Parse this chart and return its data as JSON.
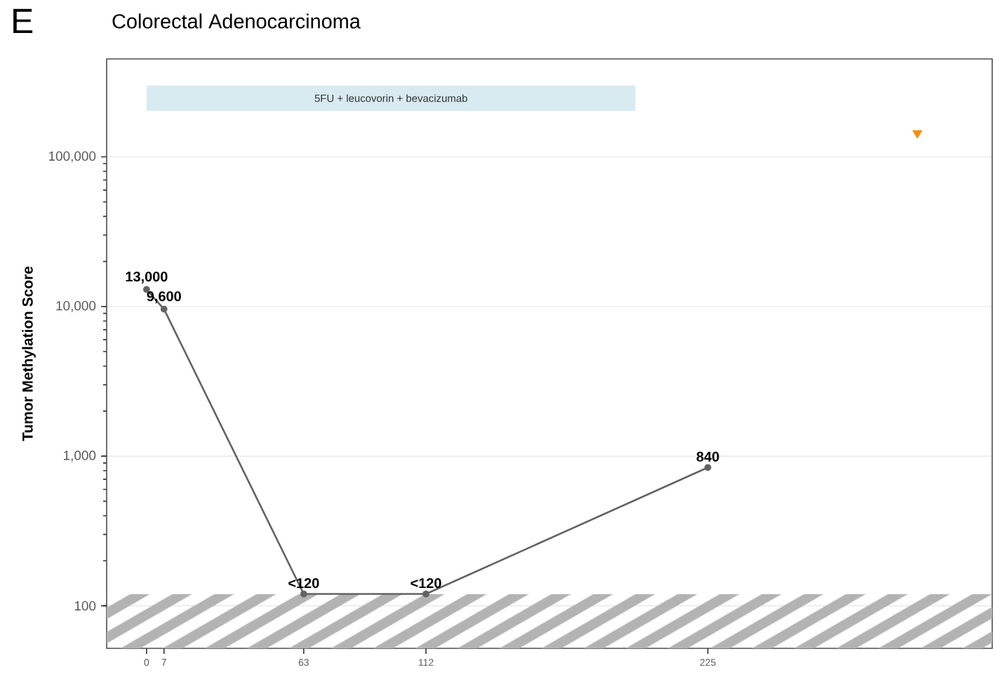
{
  "chart_data": {
    "type": "line",
    "title": "Colorectal Adenocarcinoma",
    "ylabel": "Tumor Methylation Score",
    "annotations": [
      "E"
    ],
    "log": "y",
    "grid": "y",
    "marker": "circle",
    "line_style": "solid",
    "xlim": [
      -16,
      339
    ],
    "ylim": [
      52,
      451000
    ],
    "xticks": [
      0,
      7,
      63,
      112,
      225
    ],
    "yticks": [
      {
        "value": 100,
        "label": "100"
      },
      {
        "value": 1000,
        "label": "1,000"
      },
      {
        "value": 10000,
        "label": "10,000"
      },
      {
        "value": 100000,
        "label": "100,000"
      }
    ],
    "bands": [
      {
        "axis": "x",
        "from": 0,
        "to": 196,
        "label": "5FU + leucovorin + bevacizumab",
        "color": "#d7ebf0"
      },
      {
        "axis": "y",
        "from": 52,
        "to": 120,
        "color": "#b3b3b3"
      }
    ],
    "series": [
      {
        "x": [
          0,
          7,
          63,
          112,
          225
        ],
        "values": [
          13000,
          9600,
          120,
          120,
          840
        ],
        "color": "#636363",
        "value_labels": [
          "13,000",
          "9,600",
          "<120",
          "<120",
          "840"
        ]
      },
      {
        "type": "scatter",
        "marker": "triangle",
        "x": [
          309
        ],
        "values": [
          144000
        ],
        "color": "#f98c0a"
      }
    ]
  }
}
